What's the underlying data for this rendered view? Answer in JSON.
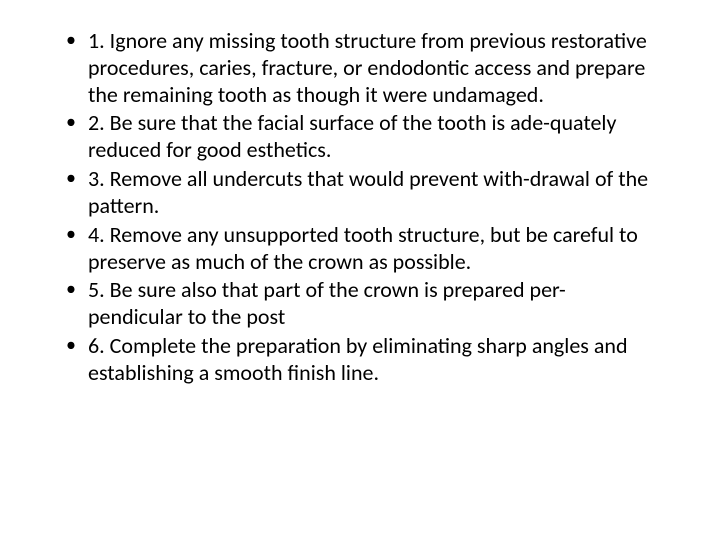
{
  "slide": {
    "background_color": "#ffffff",
    "text_color": "#000000",
    "font_family": "Calibri, Arial, sans-serif",
    "font_size_pt": 16,
    "bullets": [
      "1.  Ignore any missing tooth structure from previous restorative procedures, caries, fracture, or endodontic access and prepare the remaining tooth as though it were undamaged.",
      "2.  Be sure that the facial surface of the tooth is ade-quately reduced for good esthetics.",
      "3.  Remove all undercuts that would prevent with-drawal of the pattern.",
      "4.  Remove any unsupported tooth structure, but be careful to preserve as much of the crown  as possible.",
      "5.  Be sure also that part of the crown is prepared per-pendicular to the post",
      "6.  Complete the preparation by eliminating sharp angles and establishing a smooth finish line."
    ]
  }
}
